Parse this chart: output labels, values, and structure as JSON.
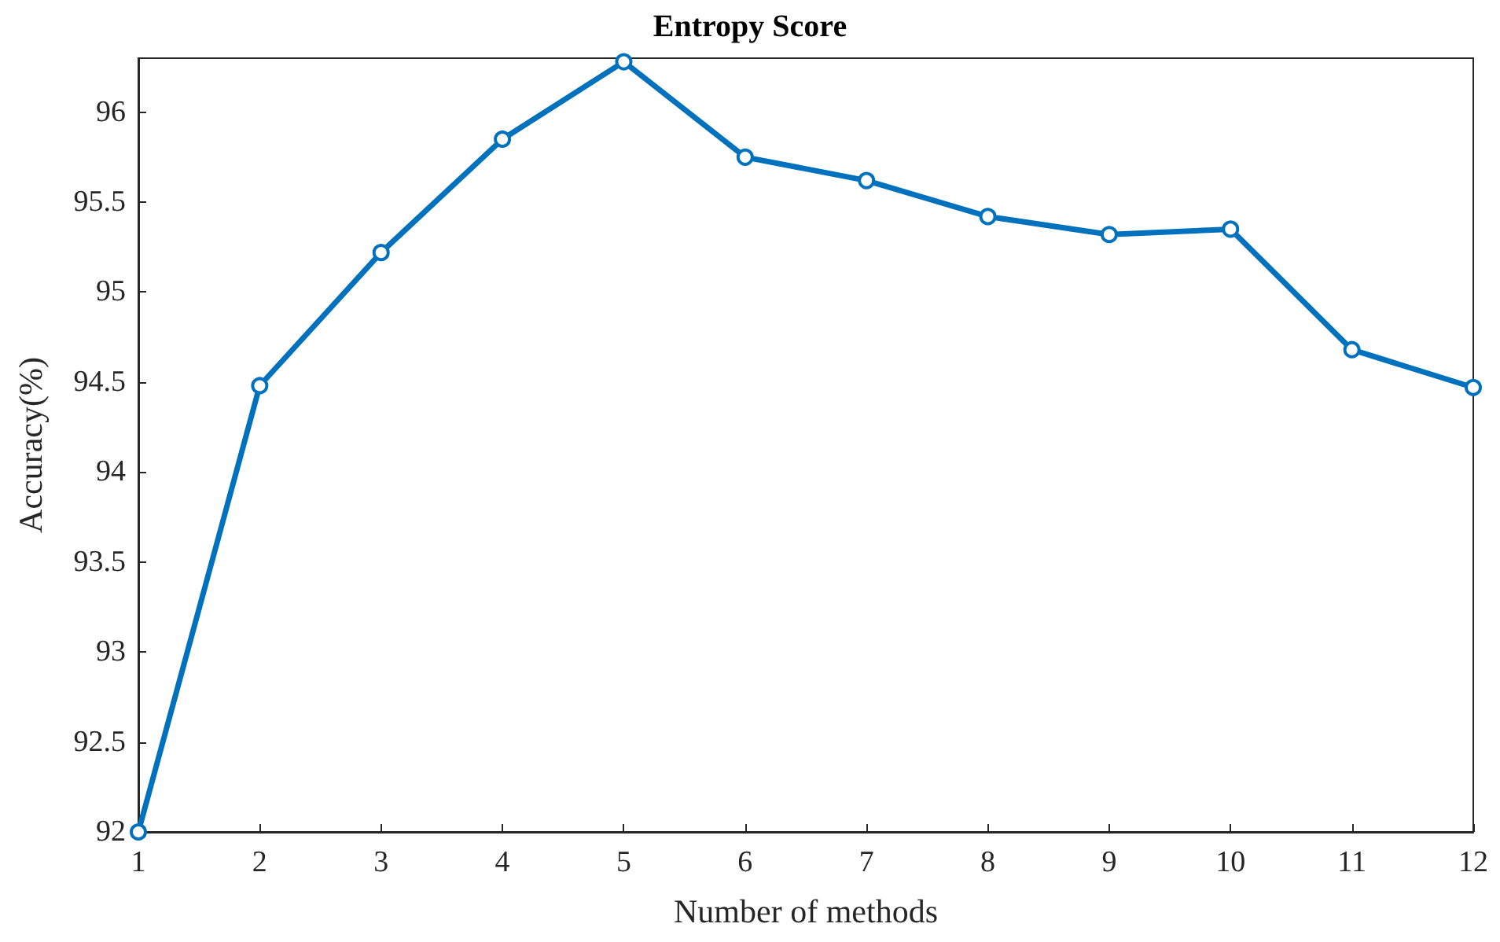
{
  "chart_data": {
    "type": "line",
    "title": "Entropy Score",
    "xlabel": "Number of methods",
    "ylabel": "Accuracy(%)",
    "x": [
      1,
      2,
      3,
      4,
      5,
      6,
      7,
      8,
      9,
      10,
      11,
      12
    ],
    "series": [
      {
        "color": "#0072bd",
        "values": [
          92.0,
          94.48,
          95.22,
          95.85,
          96.28,
          95.75,
          95.62,
          95.42,
          95.32,
          95.35,
          94.68,
          94.47
        ]
      }
    ],
    "xlim": [
      1,
      12
    ],
    "xticks": [
      1,
      2,
      3,
      4,
      5,
      6,
      7,
      8,
      9,
      10,
      11,
      12
    ],
    "ylim": [
      92,
      96.3
    ],
    "yticks": [
      92,
      92.5,
      93,
      93.5,
      94,
      94.5,
      95,
      95.5,
      96
    ],
    "grid": false,
    "marker": "circle",
    "line_style": "solid"
  }
}
